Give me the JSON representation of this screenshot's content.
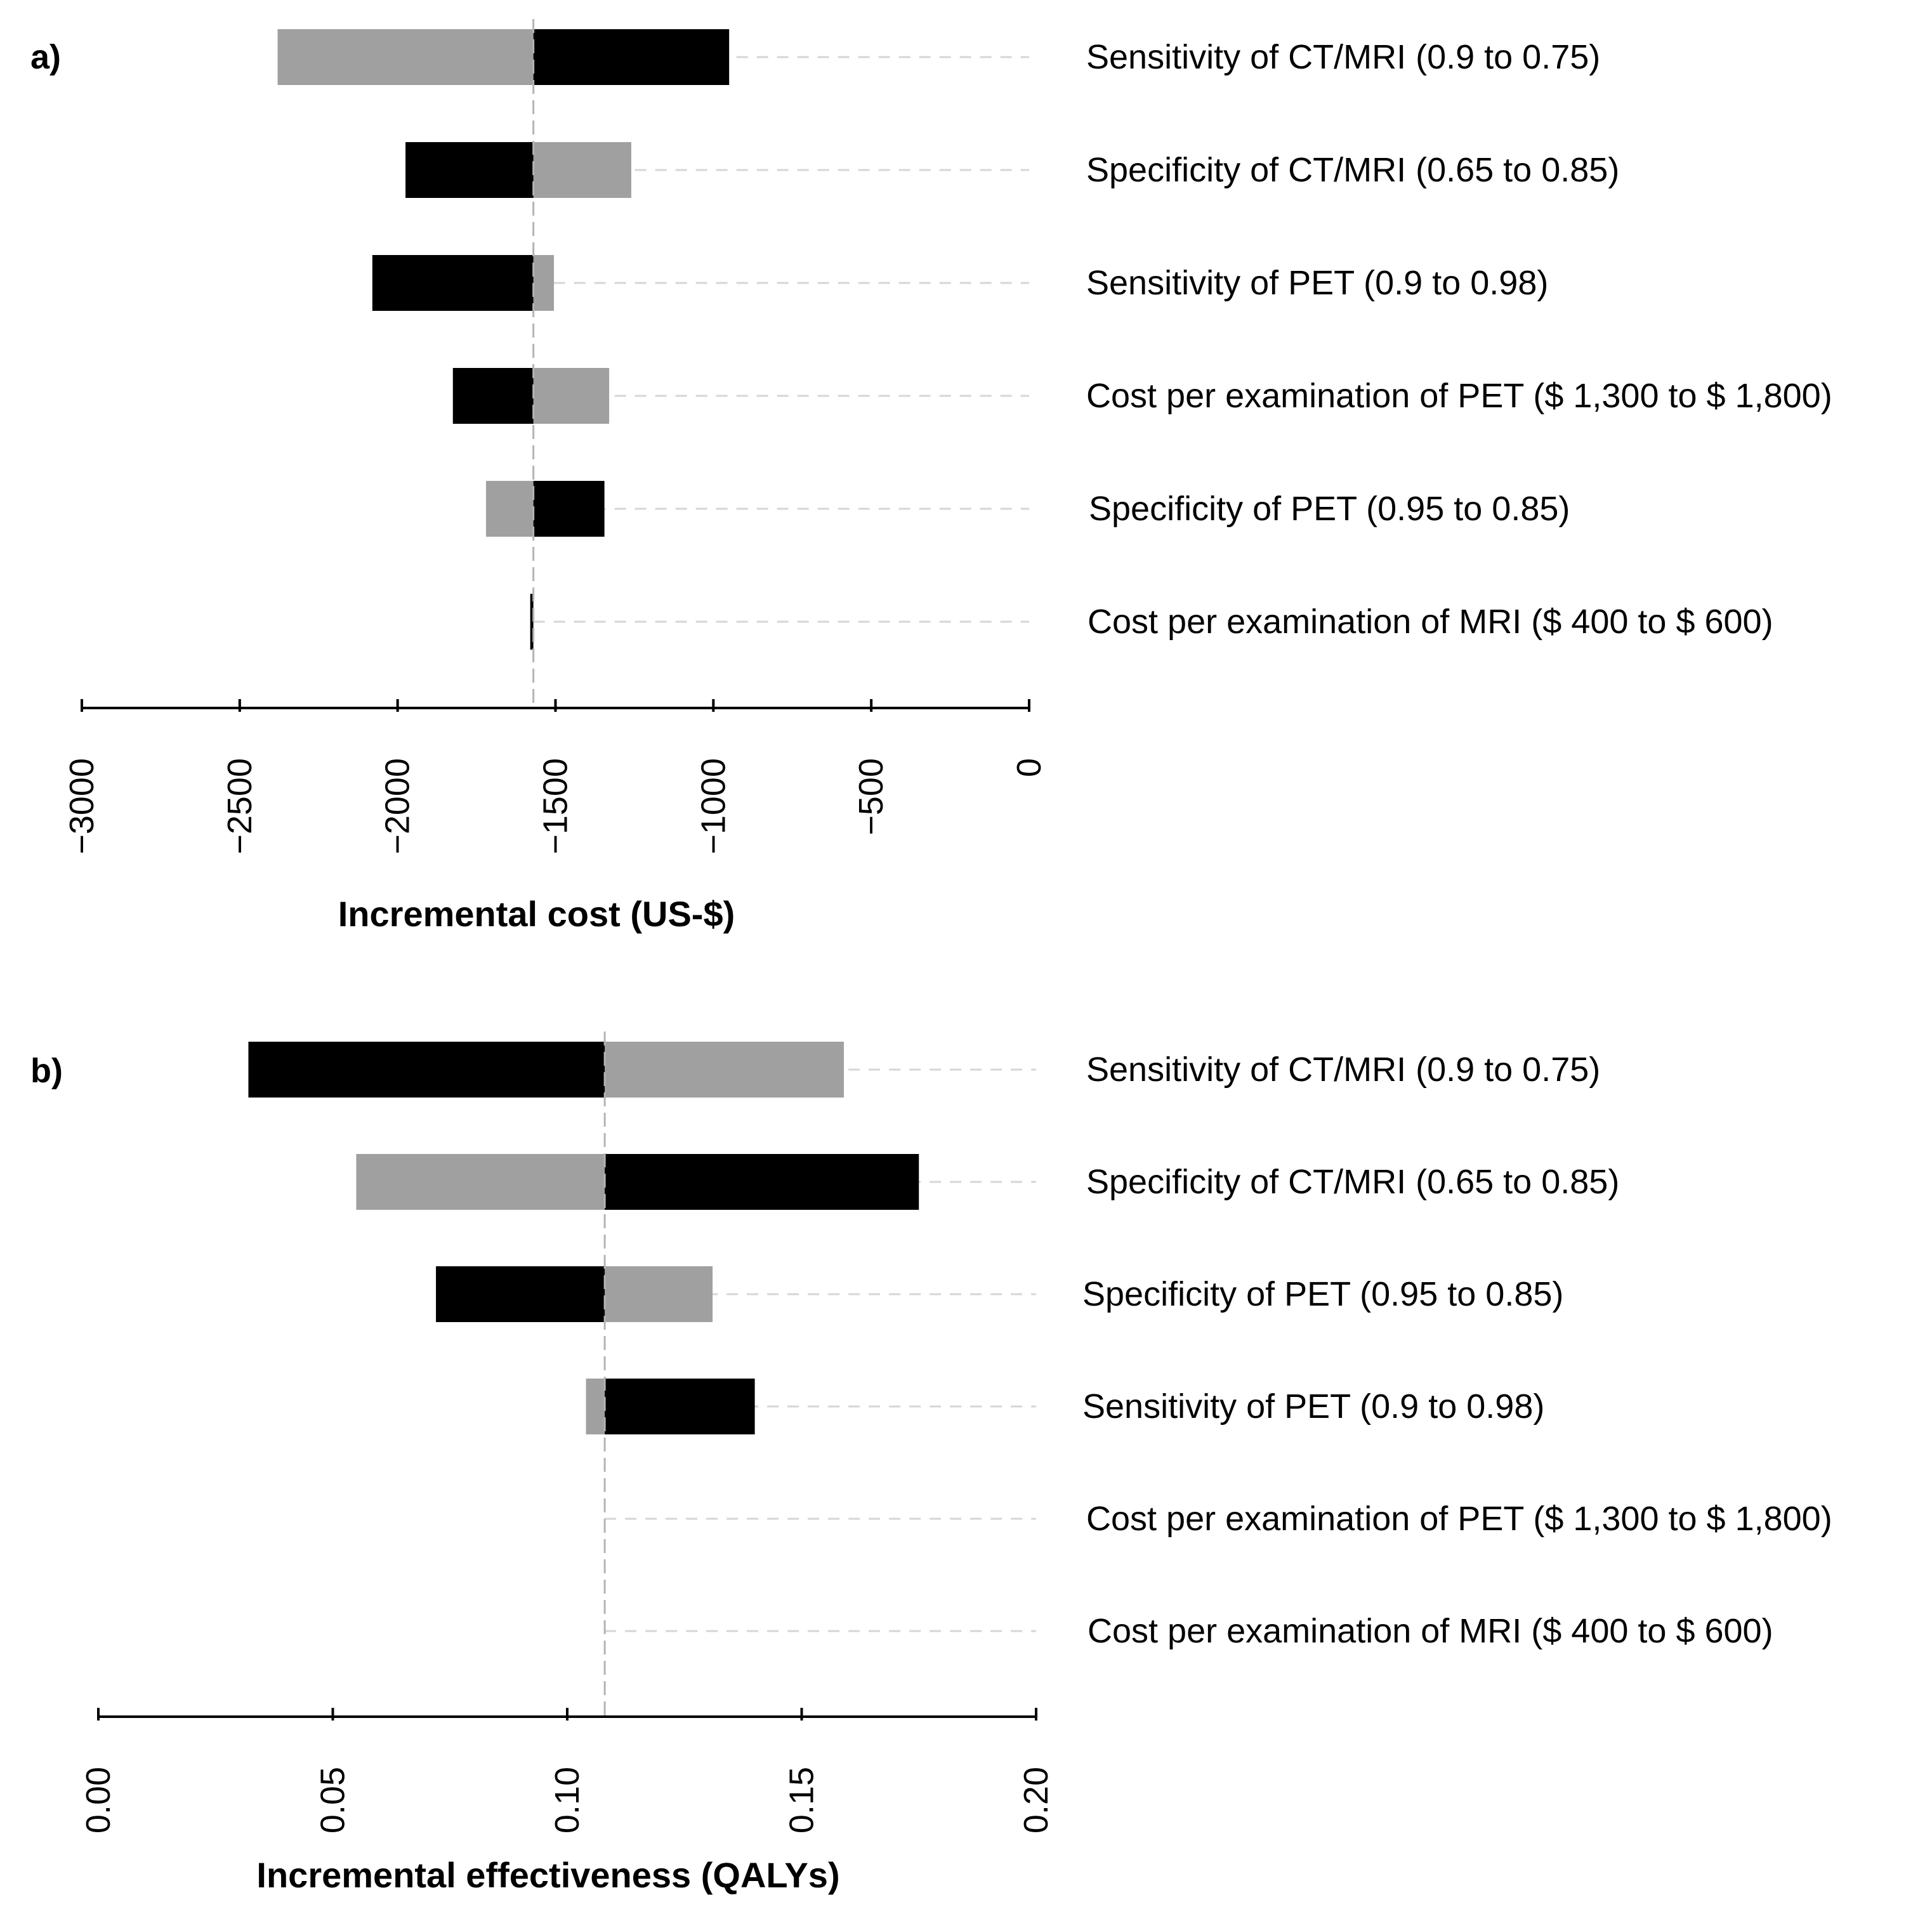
{
  "colors": {
    "black_bar": "#000000",
    "gray_bar": "#a0a0a0",
    "grid": "#d6d6d6",
    "baseline": "#b4b4b4",
    "axis": "#000000"
  },
  "chart_data": [
    {
      "type": "tornado",
      "panel_label": "a)",
      "xlabel": "Incremental cost (US-$)",
      "xlim": [
        -3000,
        0
      ],
      "ticks": [
        -3000,
        -2500,
        -2000,
        -1500,
        -1000,
        -500,
        0
      ],
      "tick_labels": [
        "−3000",
        "−2500",
        "−2000",
        "−1500",
        "−1000",
        "−500",
        "0"
      ],
      "baseline": -1570,
      "parameters": [
        {
          "label": "Sensitivity of CT/MRI (0.9 to 0.75)",
          "black": [
            -1570,
            -950
          ],
          "gray": [
            -2380,
            -1570
          ]
        },
        {
          "label": "Specificity of CT/MRI (0.65 to 0.85)",
          "black": [
            -1975,
            -1570
          ],
          "gray": [
            -1570,
            -1260
          ]
        },
        {
          "label": "Sensitivity of PET (0.9 to 0.98)",
          "black": [
            -2080,
            -1570
          ],
          "gray": [
            -1570,
            -1505
          ]
        },
        {
          "label": "Cost per examination of PET ($ 1,300 to $ 1,800)",
          "black": [
            -1825,
            -1570
          ],
          "gray": [
            -1570,
            -1330
          ]
        },
        {
          "label": "Specificity of PET (0.95 to 0.85)",
          "black": [
            -1570,
            -1345
          ],
          "gray": [
            -1720,
            -1570
          ]
        },
        {
          "label": "Cost per examination of MRI ($ 400 to $ 600)",
          "black": [
            -1580,
            -1570
          ],
          "gray": [
            -1570,
            -1570
          ]
        }
      ]
    },
    {
      "type": "tornado",
      "panel_label": "b)",
      "xlabel": "Incremental effectiveness (QALYs)",
      "xlim": [
        0.0,
        0.2
      ],
      "ticks": [
        0.0,
        0.05,
        0.1,
        0.15,
        0.2
      ],
      "tick_labels": [
        "0.00",
        "0.05",
        "0.10",
        "0.15",
        "0.20"
      ],
      "baseline": 0.108,
      "parameters": [
        {
          "label": "Sensitivity of CT/MRI (0.9 to 0.75)",
          "black": [
            0.032,
            0.108
          ],
          "gray": [
            0.108,
            0.159
          ]
        },
        {
          "label": "Specificity of CT/MRI (0.65 to 0.85)",
          "black": [
            0.108,
            0.175
          ],
          "gray": [
            0.055,
            0.108
          ]
        },
        {
          "label": "Specificity of PET (0.95 to 0.85)",
          "black": [
            0.072,
            0.108
          ],
          "gray": [
            0.108,
            0.131
          ]
        },
        {
          "label": "Sensitivity of PET (0.9 to 0.98)",
          "black": [
            0.108,
            0.14
          ],
          "gray": [
            0.104,
            0.108
          ]
        },
        {
          "label": "Cost per examination of PET ($ 1,300 to $ 1,800)",
          "black": [
            0.108,
            0.108
          ],
          "gray": [
            0.108,
            0.108
          ]
        },
        {
          "label": "Cost per examination of MRI ($ 400 to $ 600)",
          "black": [
            0.108,
            0.108
          ],
          "gray": [
            0.108,
            0.108
          ]
        }
      ]
    }
  ]
}
